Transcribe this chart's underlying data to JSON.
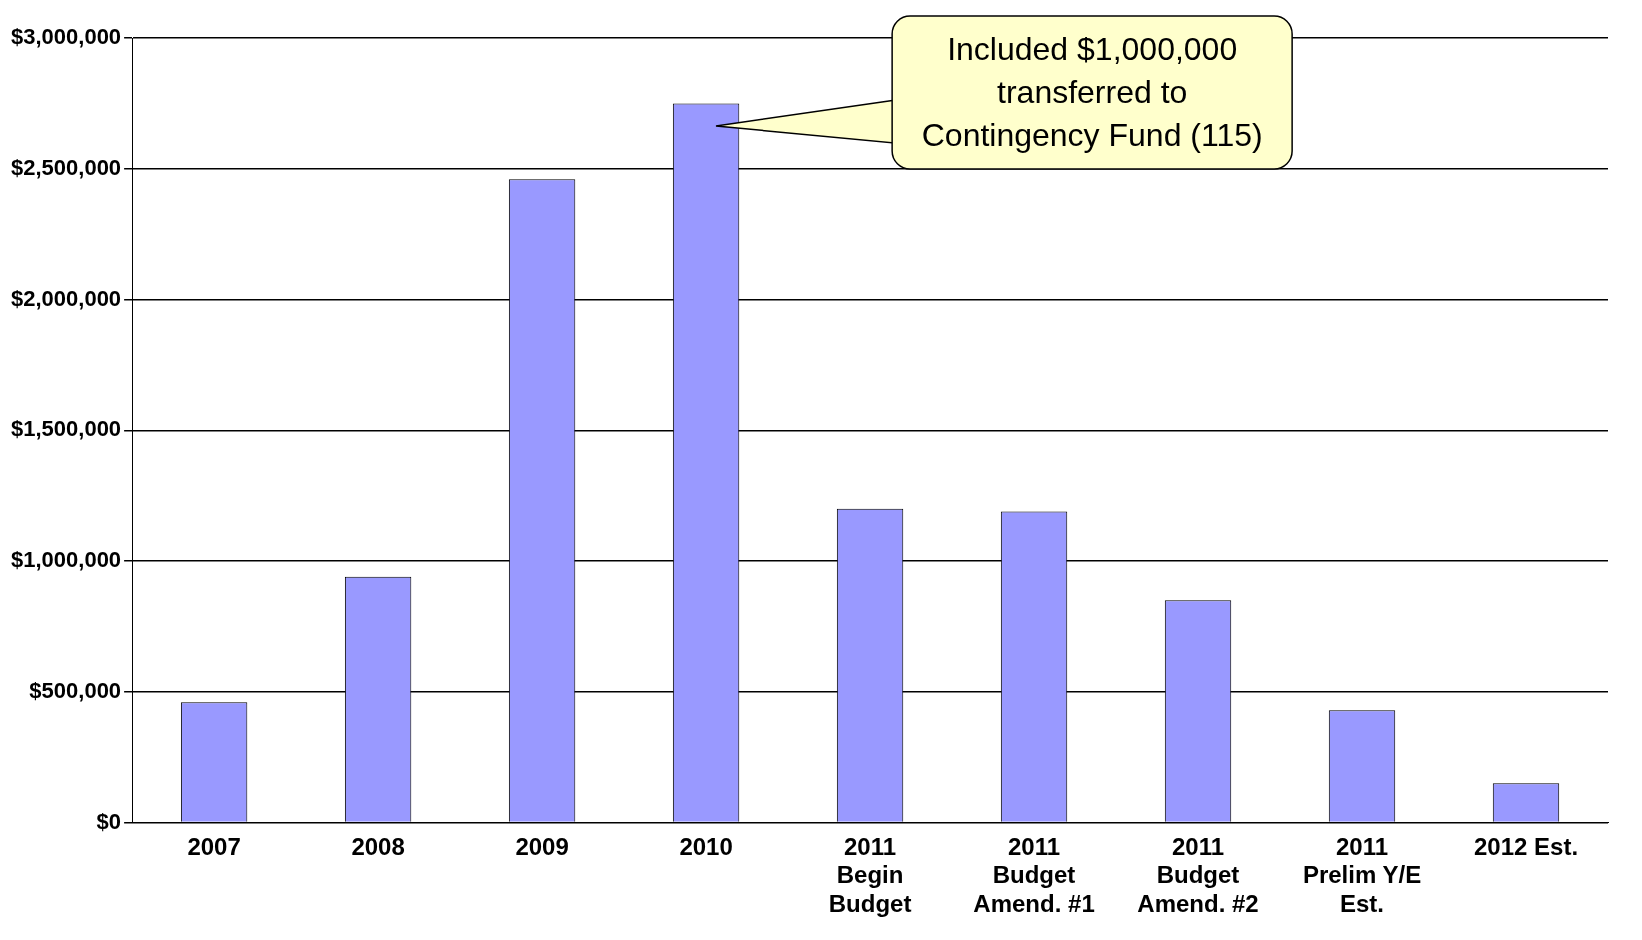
{
  "chart_data": {
    "type": "bar",
    "categories": [
      "2007",
      "2008",
      "2009",
      "2010",
      "2011\nBegin\nBudget",
      "2011\nBudget\nAmend. #1",
      "2011\nBudget\nAmend. #2",
      "2011\nPrelim Y/E\nEst.",
      "2012 Est."
    ],
    "values": [
      460000,
      940000,
      2460000,
      2750000,
      1200000,
      1190000,
      850000,
      430000,
      150000
    ],
    "color": "#9999ff",
    "ylim": [
      0,
      3000000
    ],
    "yticks": [
      {
        "value": 0,
        "label": "$0"
      },
      {
        "value": 500000,
        "label": "$500,000"
      },
      {
        "value": 1000000,
        "label": "$1,000,000"
      },
      {
        "value": 1500000,
        "label": "$1,500,000"
      },
      {
        "value": 2000000,
        "label": "$2,000,000"
      },
      {
        "value": 2500000,
        "label": "$2,500,000"
      },
      {
        "value": 3000000,
        "label": "$3,000,000"
      }
    ],
    "grid": "y",
    "legend": false,
    "annotations": [
      "Included $1,000,000\ntransferred to\nContingency Fund (115)"
    ]
  }
}
